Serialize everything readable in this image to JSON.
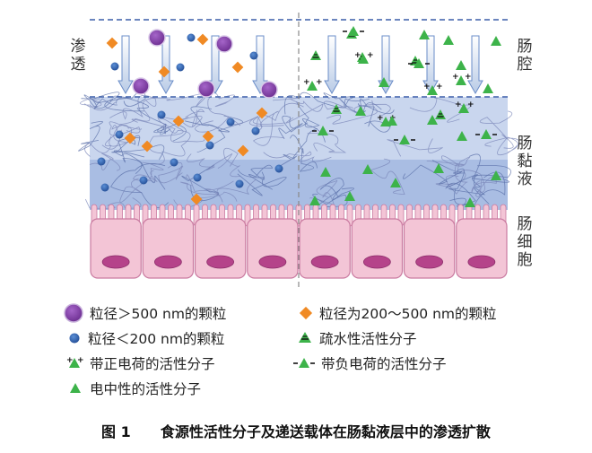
{
  "labels": {
    "osmosis": "渗透",
    "lumen": "肠腔",
    "mucus": "肠黏液",
    "epithelium": "肠细胞"
  },
  "legend": {
    "large_particle": "粒径＞500 nm的颗粒",
    "medium_particle": "粒径为200～500 nm的颗粒",
    "small_particle": "粒径＜200 nm的颗粒",
    "hydrophobic": "疏水性活性分子",
    "positive": "带正电荷的活性分子",
    "negative": "带负电荷的活性分子",
    "neutral": "电中性的活性分子"
  },
  "caption": {
    "number": "图 1",
    "title": "食源性活性分子及递送载体在肠黏液层中的渗透扩散"
  },
  "colors": {
    "large_particle": "#7b3fa0",
    "medium_particle": "#f08a24",
    "small_particle": "#2e5fae",
    "molecule_green": "#3db34a",
    "mucus_light": "#c9d6ee",
    "mucus_dark": "#9fb5df",
    "cell_fill": "#f3c5d6",
    "nucleus": "#b5438a",
    "dashed_line": "#3a5da8"
  }
}
